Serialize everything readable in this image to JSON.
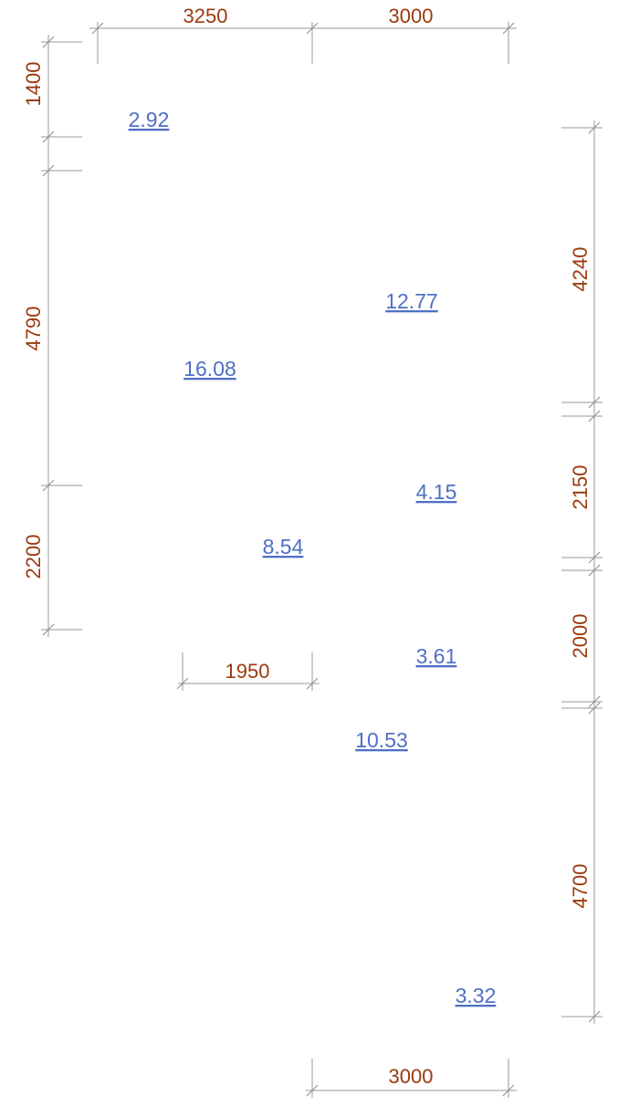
{
  "colors": {
    "dimension_text": "#9b3a0e",
    "area_text": "#4f6fc4",
    "dimension_line": "#9a9a9a"
  },
  "dimensions": {
    "top": [
      "3250",
      "3000"
    ],
    "left": [
      "1400",
      "4790",
      "2200"
    ],
    "right": [
      "4240",
      "2150",
      "2000",
      "4700"
    ],
    "middle": "1950",
    "bottom": "3000"
  },
  "rooms": [
    "2.92",
    "12.77",
    "16.08",
    "4.15",
    "8.54",
    "3.61",
    "10.53",
    "3.32"
  ]
}
